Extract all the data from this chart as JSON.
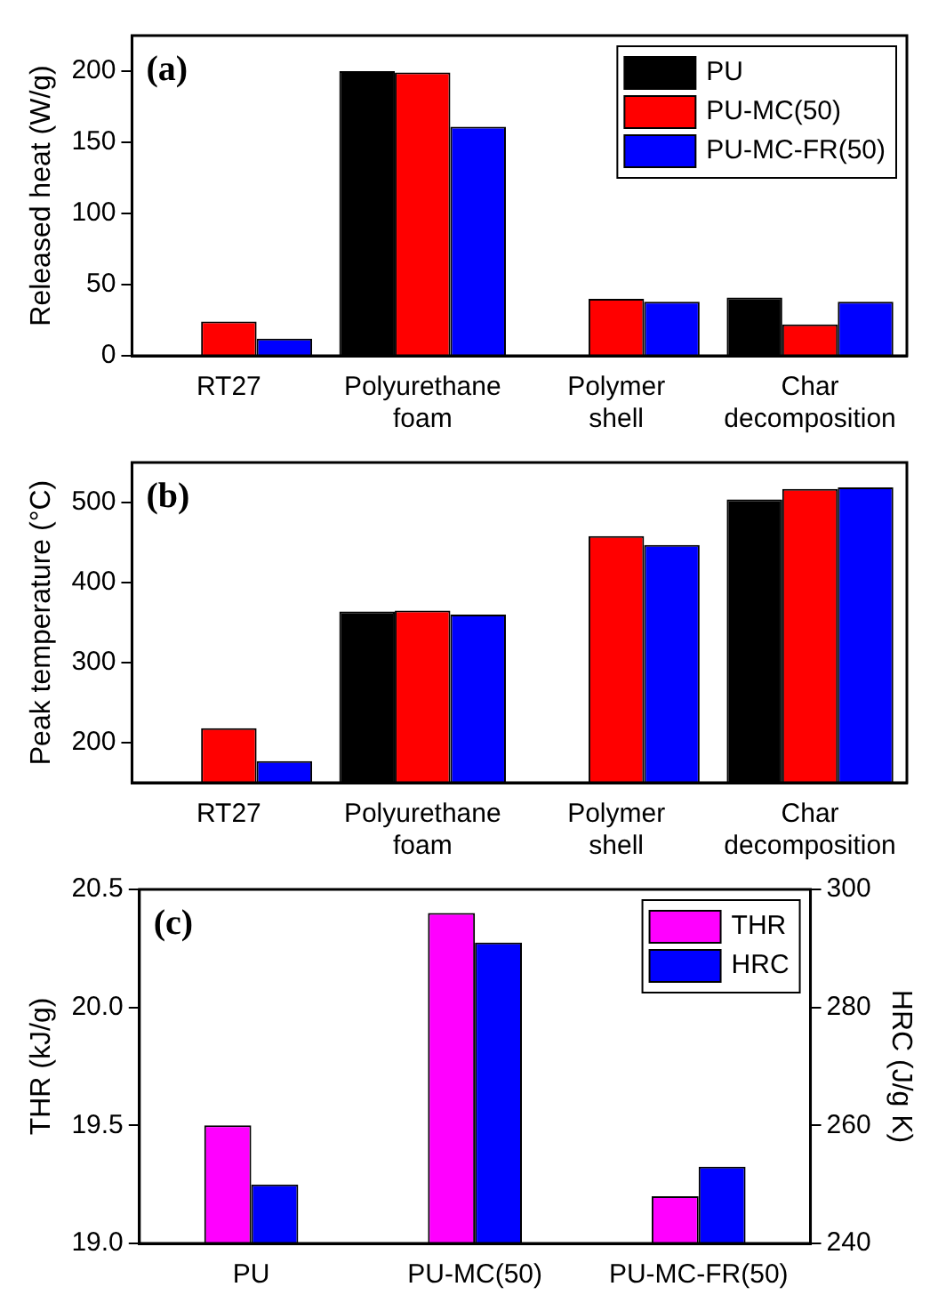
{
  "chart_data": [
    {
      "type": "bar",
      "ylabel": "Released heat (W/g)",
      "annotations": [
        "(a)"
      ],
      "categories": [
        "RT27",
        "Polyurethane foam",
        "Polymer shell",
        "Char decomposition"
      ],
      "series": [
        {
          "name": "PU",
          "color": "#000000",
          "values": [
            null,
            200,
            null,
            41
          ]
        },
        {
          "name": "PU-MC(50)",
          "color": "#ff0000",
          "values": [
            24,
            199,
            40,
            22
          ]
        },
        {
          "name": "PU-MC-FR(50)",
          "color": "#0000ff",
          "values": [
            12,
            161,
            38,
            38
          ]
        }
      ],
      "ylim": [
        0,
        225
      ],
      "yticks": [
        0,
        50,
        100,
        150,
        200
      ],
      "legend": "top right",
      "grid": false
    },
    {
      "type": "bar",
      "ylabel": "Peak temperature (°C)",
      "annotations": [
        "(b)"
      ],
      "categories": [
        "RT27",
        "Polyurethane foam",
        "Polymer shell",
        "Char decomposition"
      ],
      "series": [
        {
          "color": "#000000",
          "values": [
            null,
            364,
            null,
            504
          ]
        },
        {
          "color": "#ff0000",
          "values": [
            218,
            365,
            458,
            517
          ]
        },
        {
          "color": "#0000ff",
          "values": [
            177,
            360,
            447,
            519
          ]
        }
      ],
      "ylim": [
        150,
        550
      ],
      "yticks": [
        200,
        300,
        400,
        500
      ],
      "legend": false,
      "grid": false
    },
    {
      "type": "bar",
      "ylabel": "THR (kJ/g)",
      "y2label": "HRC (J/g K)",
      "annotations": [
        "(c)"
      ],
      "categories": [
        "PU",
        "PU-MC(50)",
        "PU-MC-FR(50)"
      ],
      "series": [
        {
          "name": "THR",
          "color": "#ff00ff",
          "values": [
            19.5,
            20.4,
            19.2
          ]
        },
        {
          "name": "HRC",
          "color": "#0000ff",
          "axis": "y2",
          "values": [
            250,
            291,
            253
          ]
        }
      ],
      "ylim": [
        19,
        20.5
      ],
      "yticks": [
        {
          "value": 19,
          "label": "19.0"
        },
        {
          "value": 19.5,
          "label": "19.5"
        },
        {
          "value": 20,
          "label": "20.0"
        },
        {
          "value": 20.5,
          "label": "20.5"
        }
      ],
      "y2lim": [
        240,
        300
      ],
      "y2ticks": [
        240,
        260,
        280,
        300
      ],
      "legend": "top right",
      "grid": false
    }
  ]
}
